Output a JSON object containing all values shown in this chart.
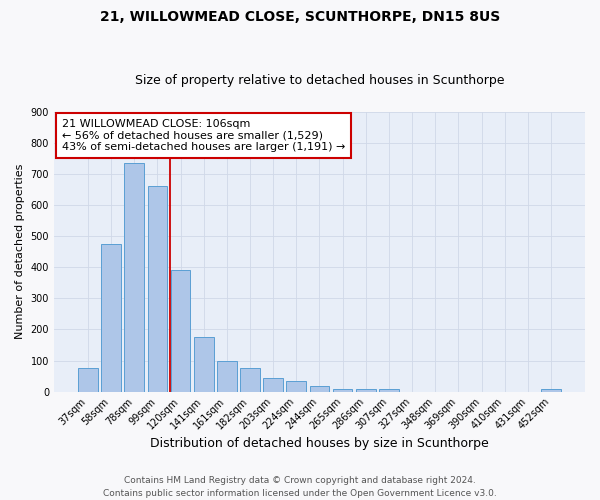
{
  "title": "21, WILLOWMEAD CLOSE, SCUNTHORPE, DN15 8US",
  "subtitle": "Size of property relative to detached houses in Scunthorpe",
  "xlabel": "Distribution of detached houses by size in Scunthorpe",
  "ylabel": "Number of detached properties",
  "bar_labels": [
    "37sqm",
    "58sqm",
    "78sqm",
    "99sqm",
    "120sqm",
    "141sqm",
    "161sqm",
    "182sqm",
    "203sqm",
    "224sqm",
    "244sqm",
    "265sqm",
    "286sqm",
    "307sqm",
    "327sqm",
    "348sqm",
    "369sqm",
    "390sqm",
    "410sqm",
    "431sqm",
    "452sqm"
  ],
  "bar_values": [
    75,
    475,
    735,
    660,
    390,
    175,
    100,
    75,
    45,
    33,
    18,
    10,
    10,
    8,
    0,
    0,
    0,
    0,
    0,
    0,
    8
  ],
  "bar_color": "#aec6e8",
  "bar_edge_color": "#5a9fd4",
  "annotation_line1": "21 WILLOWMEAD CLOSE: 106sqm",
  "annotation_line2": "← 56% of detached houses are smaller (1,529)",
  "annotation_line3": "43% of semi-detached houses are larger (1,191) →",
  "annotation_box_color": "#ffffff",
  "annotation_box_edge": "#cc0000",
  "ylim": [
    0,
    900
  ],
  "yticks": [
    0,
    100,
    200,
    300,
    400,
    500,
    600,
    700,
    800,
    900
  ],
  "grid_color": "#d0d8e8",
  "background_color": "#e8eef8",
  "fig_background": "#f8f8fa",
  "footnote1": "Contains HM Land Registry data © Crown copyright and database right 2024.",
  "footnote2": "Contains public sector information licensed under the Open Government Licence v3.0.",
  "red_line_x": 3.55,
  "title_fontsize": 10,
  "subtitle_fontsize": 9,
  "xlabel_fontsize": 9,
  "ylabel_fontsize": 8,
  "annotation_fontsize": 8,
  "tick_fontsize": 7,
  "footnote_fontsize": 6.5
}
